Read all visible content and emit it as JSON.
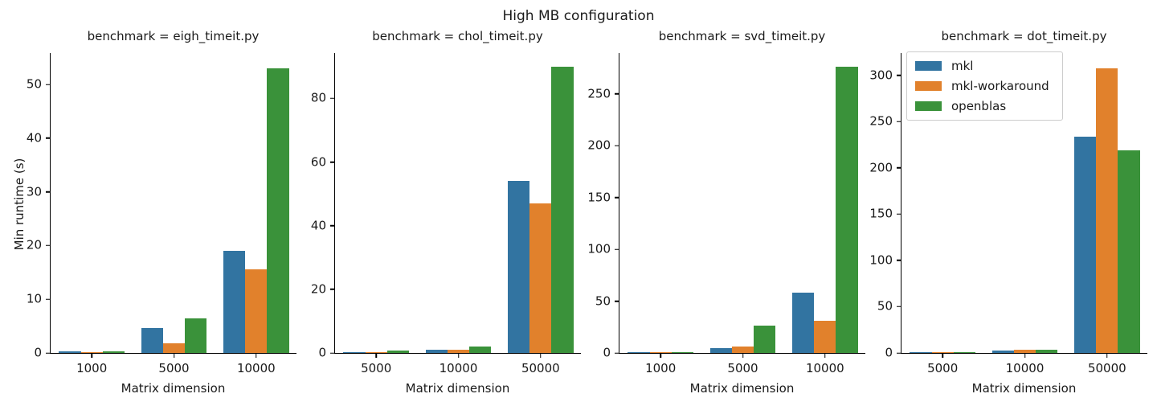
{
  "figure": {
    "title": "High MB configuration",
    "ylabel": "Min runtime (s)",
    "xlabel": "Matrix dimension"
  },
  "legend": {
    "position": "upper right",
    "items": [
      "mkl",
      "mkl-workaround",
      "openblas"
    ]
  },
  "colors": {
    "mkl": "#3274a1",
    "mkl_workaround": "#e1812c",
    "openblas": "#3a923a",
    "spine": "#000000",
    "text": "#1a1a1a"
  },
  "chart_data": [
    {
      "type": "bar",
      "title": "benchmark = eigh_timeit.py",
      "xlabel": "Matrix dimension",
      "ylabel": "Min runtime (s)",
      "categories": [
        "1000",
        "5000",
        "10000"
      ],
      "series": [
        {
          "name": "mkl",
          "color": "#3274a1",
          "values": [
            0.35,
            4.7,
            19.0
          ]
        },
        {
          "name": "mkl-workaround",
          "color": "#e1812c",
          "values": [
            0.15,
            1.8,
            15.5
          ]
        },
        {
          "name": "openblas",
          "color": "#3a923a",
          "values": [
            0.35,
            6.4,
            53.0
          ]
        }
      ],
      "yticks": [
        0,
        10,
        20,
        30,
        40,
        50
      ],
      "ylim": [
        0,
        56
      ],
      "grid": false
    },
    {
      "type": "bar",
      "title": "benchmark = chol_timeit.py",
      "xlabel": "Matrix dimension",
      "ylabel": "Min runtime (s)",
      "categories": [
        "5000",
        "10000",
        "50000"
      ],
      "series": [
        {
          "name": "mkl",
          "color": "#3274a1",
          "values": [
            0.35,
            0.95,
            54.0
          ]
        },
        {
          "name": "mkl-workaround",
          "color": "#e1812c",
          "values": [
            0.2,
            0.9,
            47.0
          ]
        },
        {
          "name": "openblas",
          "color": "#3a923a",
          "values": [
            0.75,
            2.1,
            90.0
          ]
        }
      ],
      "yticks": [
        0,
        20,
        40,
        60,
        80
      ],
      "ylim": [
        0,
        94.5
      ],
      "grid": false
    },
    {
      "type": "bar",
      "title": "benchmark = svd_timeit.py",
      "xlabel": "Matrix dimension",
      "ylabel": "Min runtime (s)",
      "categories": [
        "1000",
        "5000",
        "10000"
      ],
      "series": [
        {
          "name": "mkl",
          "color": "#3274a1",
          "values": [
            0.25,
            4.5,
            58.0
          ]
        },
        {
          "name": "mkl-workaround",
          "color": "#e1812c",
          "values": [
            0.2,
            6.0,
            31.0
          ]
        },
        {
          "name": "openblas",
          "color": "#3a923a",
          "values": [
            0.9,
            26.0,
            276.0
          ]
        }
      ],
      "yticks": [
        0,
        50,
        100,
        150,
        200,
        250
      ],
      "ylim": [
        0,
        290
      ],
      "grid": false
    },
    {
      "type": "bar",
      "title": "benchmark = dot_timeit.py",
      "xlabel": "Matrix dimension",
      "ylabel": "Min runtime (s)",
      "categories": [
        "5000",
        "10000",
        "50000"
      ],
      "series": [
        {
          "name": "mkl",
          "color": "#3274a1",
          "values": [
            1.1,
            2.3,
            234.0
          ]
        },
        {
          "name": "mkl-workaround",
          "color": "#e1812c",
          "values": [
            1.0,
            3.2,
            308.0
          ]
        },
        {
          "name": "openblas",
          "color": "#3a923a",
          "values": [
            0.9,
            3.2,
            219.0
          ]
        }
      ],
      "yticks": [
        0,
        50,
        100,
        150,
        200,
        250,
        300
      ],
      "ylim": [
        0,
        325
      ],
      "grid": false
    }
  ]
}
